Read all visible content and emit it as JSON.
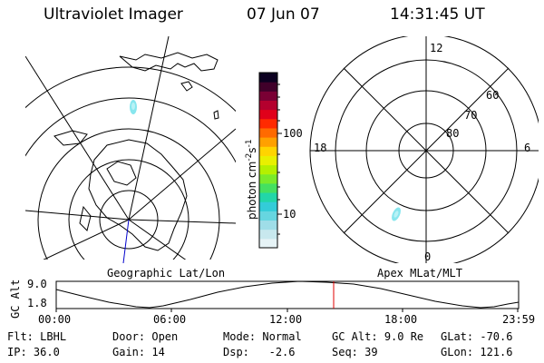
{
  "header": {
    "instrument": "Ultraviolet Imager",
    "date": "07 Jun 07",
    "time": "14:31:45 UT"
  },
  "colorbar": {
    "unit_label": "photon cm",
    "unit_exp1": "-2",
    "unit_mid": "s",
    "unit_exp2": "-1",
    "ticks": [
      "100",
      "10"
    ],
    "colors": [
      "#e6f3f6",
      "#c8e8ee",
      "#9fdde8",
      "#66d6e0",
      "#33ccd8",
      "#22d6a8",
      "#44e060",
      "#7aea2a",
      "#b4f000",
      "#e8f000",
      "#ffd400",
      "#ffa000",
      "#ff6a00",
      "#ff2a00",
      "#e0001a",
      "#b4002e",
      "#7a0034",
      "#40002a",
      "#0c0020"
    ]
  },
  "left_panel": {
    "caption": "Geographic Lat/Lon"
  },
  "right_panel": {
    "caption": "Apex MLat/MLT",
    "mlt_labels": {
      "top": "12",
      "left": "18",
      "right": "6",
      "bottom": "0"
    },
    "lat_labels": [
      "60",
      "70",
      "80"
    ]
  },
  "altitude_plot": {
    "ylabel": "GC Alt",
    "yticks": [
      "9.0",
      "1.8"
    ],
    "xticks": [
      "00:00",
      "06:00",
      "12:00",
      "18:00",
      "23:59"
    ],
    "marker_time": "14:31",
    "marker_color": "#e00000"
  },
  "info": {
    "filter_label": "Flt:",
    "filter_value": "LBHL",
    "ip_label": "IP:",
    "ip_value": "36.0",
    "door_label": "Door:",
    "door_value": "Open",
    "gain_label": "Gain:",
    "gain_value": "14",
    "mode_label": "Mode:",
    "mode_value": "Normal",
    "dsp_label": "Dsp:",
    "dsp_value": "-2.6",
    "gcalt_label": "GC Alt:",
    "gcalt_value": "9.0 Re",
    "seq_label": "Seq:",
    "seq_value": "39",
    "glat_label": "GLat:",
    "glat_value": "-70.6",
    "glon_label": "GLon:",
    "glon_value": "121.6"
  }
}
